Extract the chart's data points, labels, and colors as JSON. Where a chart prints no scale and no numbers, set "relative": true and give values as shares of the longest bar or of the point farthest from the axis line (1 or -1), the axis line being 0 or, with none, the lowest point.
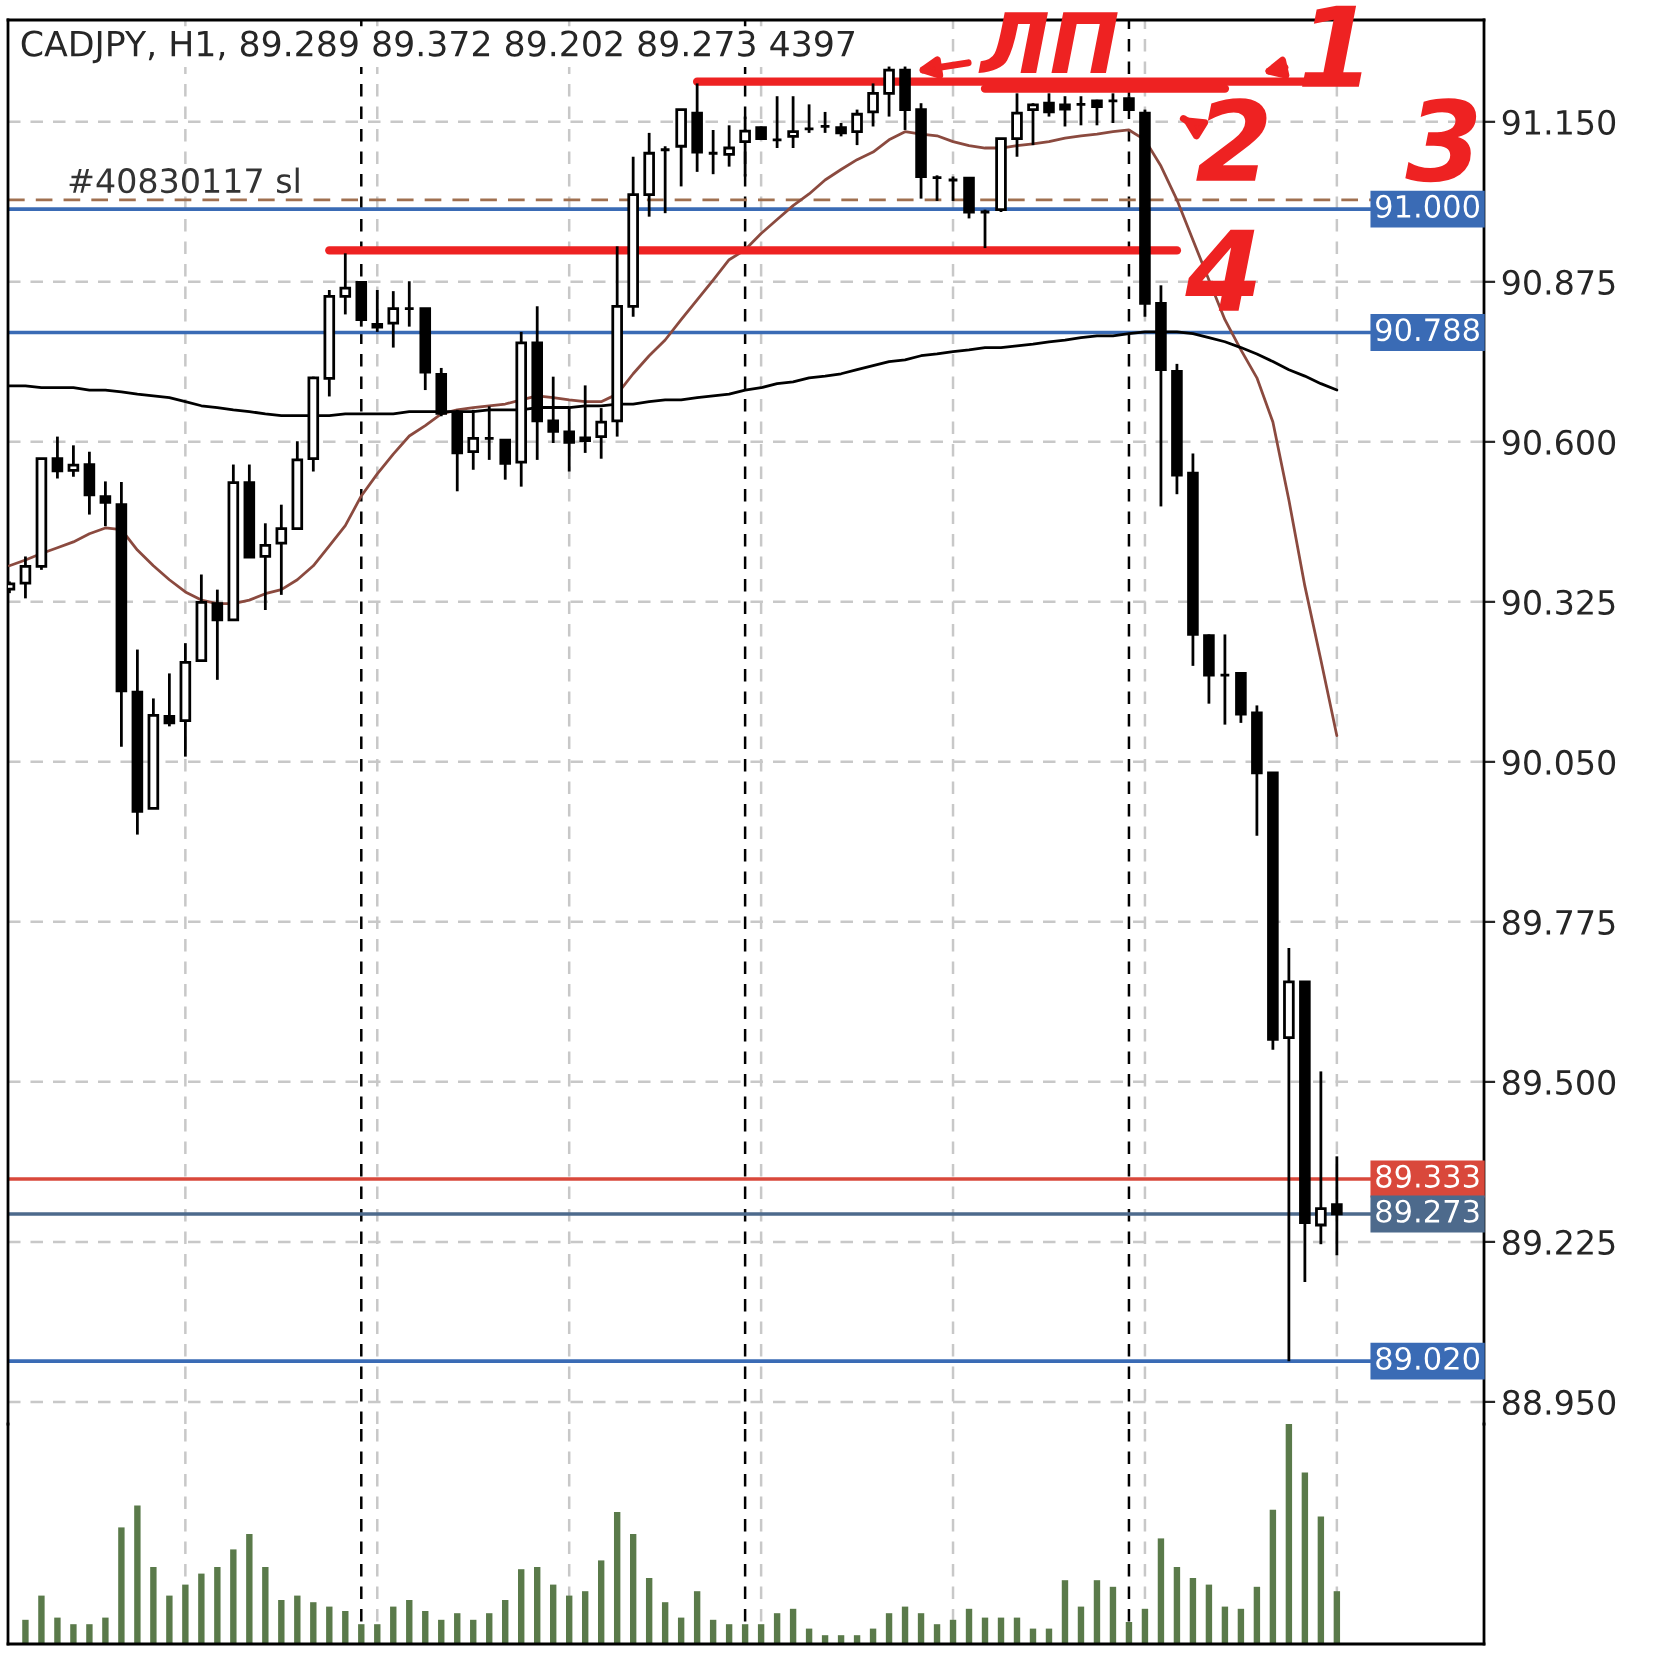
{
  "chart_data": [
    {
      "type": "candlestick",
      "title": "CADJPY, H1, 89.289 89.372 89.202 89.273 4397",
      "categories": [
        null,
        null,
        null,
        null,
        null,
        null,
        null,
        null,
        null,
        null,
        null,
        null,
        null,
        null,
        null,
        null,
        null,
        null,
        null,
        null,
        null,
        null,
        null,
        null,
        null,
        null,
        null,
        null,
        null,
        null,
        null,
        null,
        null,
        null,
        null,
        null,
        null,
        null,
        null,
        null,
        null,
        null,
        null,
        null,
        null,
        null,
        null,
        null,
        null,
        null,
        null,
        null,
        null,
        null,
        null,
        null,
        null,
        null,
        null,
        null,
        null,
        null,
        null,
        null,
        null,
        null,
        null,
        null,
        null,
        null,
        null,
        null,
        null,
        null,
        null,
        null,
        null,
        null,
        null,
        null,
        null,
        null,
        null,
        null
      ],
      "ohlc": [
        [
          90.347,
          90.36,
          90.34,
          90.356
        ],
        [
          90.357,
          90.403,
          90.331,
          90.386
        ],
        [
          90.386,
          90.571,
          90.38,
          90.571
        ],
        [
          90.571,
          90.609,
          90.537,
          90.55
        ],
        [
          90.551,
          90.594,
          90.54,
          90.56
        ],
        [
          90.561,
          90.583,
          90.475,
          90.509
        ],
        [
          90.506,
          90.532,
          90.455,
          90.496
        ],
        [
          90.492,
          90.531,
          90.076,
          90.172
        ],
        [
          90.17,
          90.243,
          89.925,
          89.965
        ],
        [
          89.97,
          90.159,
          89.97,
          90.13
        ],
        [
          90.128,
          90.202,
          90.111,
          90.117
        ],
        [
          90.121,
          90.254,
          90.059,
          90.221
        ],
        [
          90.224,
          90.372,
          90.224,
          90.324
        ],
        [
          90.322,
          90.346,
          90.191,
          90.294
        ],
        [
          90.294,
          90.561,
          90.294,
          90.53
        ],
        [
          90.53,
          90.561,
          90.402,
          90.402
        ],
        [
          90.403,
          90.46,
          90.311,
          90.422
        ],
        [
          90.426,
          90.492,
          90.337,
          90.451
        ],
        [
          90.451,
          90.601,
          90.451,
          90.569
        ],
        [
          90.571,
          90.712,
          90.549,
          90.71
        ],
        [
          90.709,
          90.861,
          90.678,
          90.85
        ],
        [
          90.85,
          90.924,
          90.819,
          90.864
        ],
        [
          90.874,
          90.874,
          90.798,
          90.81
        ],
        [
          90.802,
          90.861,
          90.789,
          90.797
        ],
        [
          90.804,
          90.859,
          90.762,
          90.829
        ],
        [
          90.829,
          90.876,
          90.798,
          90.829
        ],
        [
          90.829,
          90.829,
          90.689,
          90.72
        ],
        [
          90.716,
          90.727,
          90.644,
          90.649
        ],
        [
          90.647,
          90.655,
          90.515,
          90.581
        ],
        [
          90.583,
          90.655,
          90.552,
          90.606
        ],
        [
          90.606,
          90.661,
          90.569,
          90.606
        ],
        [
          90.603,
          90.603,
          90.535,
          90.563
        ],
        [
          90.565,
          90.789,
          90.523,
          90.77
        ],
        [
          90.77,
          90.833,
          90.569,
          90.636
        ],
        [
          90.636,
          90.712,
          90.598,
          90.618
        ],
        [
          90.617,
          90.658,
          90.549,
          90.599
        ],
        [
          90.607,
          90.697,
          90.581,
          90.602
        ],
        [
          90.609,
          90.658,
          90.571,
          90.634
        ],
        [
          90.636,
          90.936,
          90.609,
          90.833
        ],
        [
          90.833,
          91.09,
          90.815,
          91.025
        ],
        [
          91.025,
          91.131,
          90.987,
          91.096
        ],
        [
          91.102,
          91.108,
          90.993,
          91.102
        ],
        [
          91.108,
          91.171,
          91.039,
          91.171
        ],
        [
          91.165,
          91.216,
          91.064,
          91.098
        ],
        [
          91.096,
          91.136,
          91.06,
          91.096
        ],
        [
          91.094,
          91.144,
          91.073,
          91.105
        ],
        [
          91.116,
          91.159,
          91.056,
          91.134
        ],
        [
          91.14,
          91.142,
          91.119,
          91.121
        ],
        [
          91.119,
          91.194,
          91.105,
          91.119
        ],
        [
          91.125,
          91.194,
          91.105,
          91.133
        ],
        [
          91.138,
          91.18,
          91.131,
          91.138
        ],
        [
          91.142,
          91.167,
          91.131,
          91.142
        ],
        [
          91.14,
          91.148,
          91.125,
          91.131
        ],
        [
          91.133,
          91.171,
          91.11,
          91.163
        ],
        [
          91.167,
          91.216,
          91.142,
          91.199
        ],
        [
          91.199,
          91.245,
          91.159,
          91.239
        ],
        [
          91.239,
          91.245,
          91.136,
          91.171
        ],
        [
          91.171,
          91.182,
          91.018,
          91.056
        ],
        [
          91.054,
          91.058,
          91.014,
          91.054
        ],
        [
          91.05,
          91.056,
          91.014,
          91.05
        ],
        [
          91.053,
          91.053,
          90.984,
          90.995
        ],
        [
          90.995,
          90.999,
          90.933,
          90.995
        ],
        [
          90.999,
          91.121,
          90.995,
          91.121
        ],
        [
          91.121,
          91.199,
          91.09,
          91.165
        ],
        [
          91.171,
          91.182,
          91.11,
          91.179
        ],
        [
          91.182,
          91.199,
          91.159,
          91.167
        ],
        [
          91.179,
          91.194,
          91.142,
          91.172
        ],
        [
          91.18,
          91.194,
          91.144,
          91.18
        ],
        [
          91.186,
          91.188,
          91.144,
          91.176
        ],
        [
          91.186,
          91.199,
          91.148,
          91.186
        ],
        [
          91.19,
          91.194,
          91.171,
          91.171
        ],
        [
          91.165,
          91.171,
          90.815,
          90.838
        ],
        [
          90.838,
          90.869,
          90.489,
          90.724
        ],
        [
          90.721,
          90.734,
          90.51,
          90.543
        ],
        [
          90.546,
          90.58,
          90.215,
          90.269
        ],
        [
          90.267,
          90.269,
          90.15,
          90.199
        ],
        [
          90.199,
          90.269,
          90.114,
          90.199
        ],
        [
          90.202,
          90.202,
          90.117,
          90.132
        ],
        [
          90.134,
          90.147,
          89.923,
          90.031
        ],
        [
          90.031,
          90.031,
          89.555,
          89.573
        ],
        [
          89.576,
          89.73,
          89.02,
          89.672
        ],
        [
          89.672,
          89.672,
          89.156,
          89.258
        ],
        [
          89.254,
          89.518,
          89.221,
          89.282
        ],
        [
          89.289,
          89.372,
          89.202,
          89.273
        ]
      ],
      "series": [
        {
          "type": "line",
          "color": "#8b4a3f",
          "values": [
            90.387,
            90.397,
            90.408,
            90.418,
            90.428,
            90.442,
            90.452,
            90.449,
            90.414,
            90.387,
            90.363,
            90.342,
            90.328,
            90.322,
            90.322,
            90.328,
            90.339,
            90.346,
            90.363,
            90.387,
            90.421,
            90.456,
            90.507,
            90.545,
            90.579,
            90.61,
            90.628,
            90.648,
            90.655,
            90.659,
            90.662,
            90.665,
            90.672,
            90.679,
            90.676,
            90.672,
            90.669,
            90.669,
            90.682,
            90.717,
            90.748,
            90.775,
            90.81,
            90.844,
            90.878,
            90.913,
            90.93,
            90.958,
            90.982,
            91.006,
            91.026,
            91.05,
            91.068,
            91.085,
            91.098,
            91.119,
            91.133,
            91.129,
            91.126,
            91.116,
            91.109,
            91.105,
            91.105,
            91.109,
            91.112,
            91.116,
            91.122,
            91.126,
            91.129,
            91.133,
            91.136,
            91.119,
            91.074,
            91.016,
            90.947,
            90.878,
            90.81,
            90.758,
            90.71,
            90.634,
            90.5,
            90.352,
            90.225,
            90.095
          ]
        },
        {
          "type": "line",
          "color": "#000000",
          "values": [
            90.696,
            90.696,
            90.693,
            90.693,
            90.693,
            90.689,
            90.689,
            90.686,
            90.682,
            90.679,
            90.676,
            90.669,
            90.662,
            90.659,
            90.655,
            90.652,
            90.648,
            90.645,
            90.645,
            90.645,
            90.645,
            90.648,
            90.648,
            90.648,
            90.648,
            90.652,
            90.652,
            90.652,
            90.652,
            90.652,
            90.655,
            90.655,
            90.655,
            90.659,
            90.659,
            90.659,
            90.662,
            90.662,
            90.665,
            90.665,
            90.669,
            90.672,
            90.672,
            90.676,
            90.679,
            90.682,
            90.689,
            90.693,
            90.7,
            90.703,
            90.71,
            90.713,
            90.717,
            90.724,
            90.731,
            90.738,
            90.741,
            90.748,
            90.751,
            90.755,
            90.758,
            90.762,
            90.762,
            90.765,
            90.768,
            90.772,
            90.775,
            90.779,
            90.782,
            90.782,
            90.786,
            90.789,
            90.789,
            90.789,
            90.786,
            90.779,
            90.772,
            90.762,
            90.751,
            90.738,
            90.724,
            90.713,
            90.7,
            90.689
          ]
        },
        {
          "type": "line",
          "color": "#ee2222",
          "values": [
            null,
            null,
            null,
            null,
            null,
            null,
            null,
            null,
            null,
            null,
            null,
            null,
            null,
            null,
            null,
            null,
            null,
            null,
            null,
            null,
            null,
            null,
            null,
            null,
            null,
            null,
            null,
            null,
            null,
            null,
            null,
            null,
            null,
            null,
            null,
            null,
            null,
            null,
            null,
            null,
            null,
            null,
            null,
            91.219,
            91.219,
            91.219,
            91.219,
            91.219,
            91.219,
            91.219,
            91.219,
            91.219,
            91.219,
            91.219,
            91.219,
            91.219,
            91.219,
            91.219,
            91.219,
            91.219,
            91.219,
            91.219,
            91.219,
            91.219,
            91.219,
            91.219,
            91.219,
            91.219,
            91.219,
            91.219,
            91.219,
            91.219,
            91.219,
            91.219,
            91.219,
            91.219,
            91.219,
            91.219,
            91.219,
            91.219,
            91.219,
            91.219,
            null,
            null
          ]
        },
        {
          "type": "line",
          "color": "#ee2222",
          "values": [
            null,
            null,
            null,
            null,
            null,
            null,
            null,
            null,
            null,
            null,
            null,
            null,
            null,
            null,
            null,
            null,
            null,
            null,
            null,
            null,
            null,
            null,
            null,
            null,
            null,
            null,
            null,
            null,
            null,
            null,
            null,
            null,
            null,
            null,
            null,
            null,
            null,
            null,
            null,
            null,
            null,
            null,
            null,
            null,
            null,
            null,
            null,
            null,
            null,
            null,
            null,
            null,
            null,
            null,
            null,
            null,
            null,
            null,
            null,
            null,
            null,
            91.207,
            91.207,
            91.207,
            91.207,
            91.207,
            91.207,
            91.207,
            91.207,
            91.207,
            91.207,
            91.207,
            91.207,
            91.207,
            91.207,
            91.207,
            91.207,
            null,
            null,
            null,
            null,
            null,
            null,
            null
          ]
        },
        {
          "type": "line",
          "color": "#ee2222",
          "values": [
            null,
            null,
            null,
            null,
            null,
            null,
            null,
            null,
            null,
            null,
            null,
            null,
            null,
            null,
            null,
            null,
            null,
            null,
            null,
            null,
            90.929,
            90.929,
            90.929,
            90.929,
            90.929,
            90.929,
            90.929,
            90.929,
            90.929,
            90.929,
            90.929,
            90.929,
            90.929,
            90.929,
            90.929,
            90.929,
            90.929,
            90.929,
            90.929,
            90.929,
            90.929,
            90.929,
            90.929,
            90.929,
            90.929,
            90.929,
            90.929,
            90.929,
            90.929,
            90.929,
            90.929,
            90.929,
            90.929,
            90.929,
            90.929,
            90.929,
            90.929,
            90.929,
            90.929,
            90.929,
            90.929,
            90.929,
            90.929,
            90.929,
            90.929,
            90.929,
            90.929,
            90.929,
            90.929,
            90.929,
            90.929,
            90.929,
            90.929,
            90.929,
            null,
            null,
            null,
            null,
            null,
            null,
            null,
            null,
            null,
            null
          ]
        }
      ],
      "ylim": [
        88.912,
        91.325
      ],
      "yticks": [
        {
          "value": 91.15,
          "label": "91.150"
        },
        {
          "value": 90.875,
          "label": "90.875"
        },
        {
          "value": 90.6,
          "label": "90.600"
        },
        {
          "value": 90.325,
          "label": "90.325"
        },
        {
          "value": 90.05,
          "label": "90.050"
        },
        {
          "value": 89.775,
          "label": "89.775"
        },
        {
          "value": 89.5,
          "label": "89.500"
        },
        {
          "value": 89.225,
          "label": "89.225"
        },
        {
          "value": 88.95,
          "label": "88.950"
        }
      ],
      "ref_lines": [
        {
          "axis": "y",
          "value": 91.0,
          "label": "91.000",
          "color": "#3a6bb5"
        },
        {
          "axis": "y",
          "value": 90.788,
          "label": "90.788",
          "color": "#3a6bb5"
        },
        {
          "axis": "y",
          "value": 89.02,
          "label": "89.020",
          "color": "#3a6bb5"
        },
        {
          "axis": "y",
          "value": 89.333,
          "label": "89.333",
          "color": "#d9483b"
        },
        {
          "axis": "y",
          "value": 89.273,
          "label": "89.273",
          "color": "#4d6a8c"
        },
        {
          "axis": "y",
          "value": 91.016,
          "label": "#40830117 sl",
          "color": "#a07050",
          "line_style": "dashed"
        }
      ],
      "annotations": [
        "ЛП",
        "1",
        "2",
        "3",
        "4"
      ],
      "grid": true,
      "tick_labels": "y"
    },
    {
      "type": "bar",
      "relative": true,
      "categories": [
        null,
        null,
        null,
        null,
        null,
        null,
        null,
        null,
        null,
        null,
        null,
        null,
        null,
        null,
        null,
        null,
        null,
        null,
        null,
        null,
        null,
        null,
        null,
        null,
        null,
        null,
        null,
        null,
        null,
        null,
        null,
        null,
        null,
        null,
        null,
        null,
        null,
        null,
        null,
        null,
        null,
        null,
        null,
        null,
        null,
        null,
        null,
        null,
        null,
        null,
        null,
        null,
        null,
        null,
        null,
        null,
        null,
        null,
        null,
        null,
        null,
        null,
        null,
        null,
        null,
        null,
        null,
        null,
        null,
        null,
        null,
        null,
        null,
        null,
        null,
        null,
        null,
        null,
        null,
        null,
        null,
        null,
        null
      ],
      "values": [
        0.11,
        0.22,
        0.12,
        0.09,
        0.09,
        0.12,
        0.53,
        0.63,
        0.35,
        0.22,
        0.27,
        0.32,
        0.35,
        0.43,
        0.5,
        0.35,
        0.2,
        0.22,
        0.19,
        0.17,
        0.15,
        0.09,
        0.09,
        0.17,
        0.2,
        0.15,
        0.11,
        0.14,
        0.11,
        0.14,
        0.2,
        0.34,
        0.35,
        0.27,
        0.22,
        0.24,
        0.38,
        0.6,
        0.5,
        0.3,
        0.19,
        0.12,
        0.24,
        0.11,
        0.09,
        0.09,
        0.09,
        0.14,
        0.16,
        0.07,
        0.04,
        0.04,
        0.04,
        0.07,
        0.14,
        0.17,
        0.14,
        0.09,
        0.11,
        0.16,
        0.12,
        0.12,
        0.12,
        0.07,
        0.07,
        0.29,
        0.17,
        0.29,
        0.26,
        0.1,
        0.16,
        0.48,
        0.35,
        0.3,
        0.27,
        0.17,
        0.16,
        0.26,
        0.61,
        1,
        0.78,
        0.58,
        0.24
      ],
      "color": "#5a7a4a",
      "grid": "x",
      "tick_labels": false
    }
  ]
}
